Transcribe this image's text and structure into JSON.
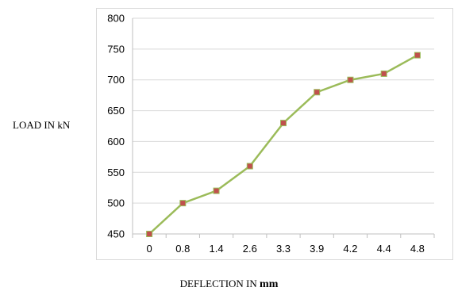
{
  "chart_data": {
    "type": "line",
    "title": "",
    "ylabel": "LOAD IN kN",
    "xlabel_main": "DEFLECTION IN",
    "xlabel_unit": "mm",
    "categories": [
      "0",
      "0.8",
      "1.4",
      "2.6",
      "3.3",
      "3.9",
      "4.2",
      "4.4",
      "4.8"
    ],
    "series": [
      {
        "values": [
          450,
          500,
          520,
          560,
          630,
          680,
          700,
          710,
          740
        ]
      }
    ],
    "ylim": [
      450,
      800
    ],
    "yticks": [
      450,
      500,
      550,
      600,
      650,
      700,
      750,
      800
    ],
    "grid": true,
    "legend": "none",
    "colors": {
      "line": "#9bbb59",
      "marker_fill": "#c0504d",
      "marker_edge": "#9bbb59",
      "grid": "#d9d9d9",
      "axis": "#bfbfbf"
    }
  }
}
